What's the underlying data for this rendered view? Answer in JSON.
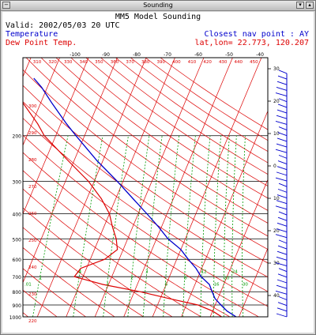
{
  "window": {
    "title": "Sounding"
  },
  "header": {
    "title": "MM5 Model Sounding",
    "valid": "Valid: 2002/05/03 20 UTC",
    "legend_temperature": "Temperature",
    "legend_dewpoint": "Dew Point Temp.",
    "nav_point": "Closest nav point : AY",
    "latlon": "lat,lon= 22.773, 120.207"
  },
  "colors": {
    "temperature": "#0000cc",
    "dewpoint": "#dd0000",
    "isotherm": "#dd0000",
    "dry_adiabat": "#dd0000",
    "mixing_ratio": "#009900",
    "grid": "#000000",
    "wind": "#0000cc"
  },
  "chart_data": {
    "type": "line",
    "title": "MM5 Model Sounding",
    "yscale": "log-pressure",
    "ylim": [
      100,
      1000
    ],
    "pressure_ticks": [
      200,
      300,
      400,
      500,
      600,
      700,
      800,
      900,
      1000
    ],
    "isotherm_top_labels": [
      -100,
      -90,
      -80,
      -70,
      -60,
      -50,
      -40
    ],
    "theta_labels": [
      310,
      320,
      330,
      340,
      350,
      360,
      370,
      380,
      390,
      400,
      410,
      420,
      430,
      440,
      450
    ],
    "theta_side_labels": [
      300,
      290,
      280,
      270,
      260,
      250,
      240,
      230,
      220
    ],
    "height_ticks": [
      30,
      20,
      10,
      0,
      10,
      20,
      30,
      40
    ],
    "mixing_ratio_labels": [
      ".01",
      ".1",
      ".4",
      "1",
      "2",
      "3",
      "5",
      "8",
      "12",
      "16",
      "20",
      "24",
      "30"
    ],
    "mixing_ratio_values": [
      0.01,
      0.1,
      0.4,
      1,
      2,
      3,
      5,
      8,
      12,
      16,
      20,
      24,
      30
    ],
    "series": [
      {
        "name": "Temperature",
        "color": "#0000cc",
        "pressure": [
          1000,
          950,
          900,
          850,
          800,
          750,
          700,
          650,
          600,
          550,
          500,
          450,
          400,
          350,
          300,
          250,
          200,
          180,
          150,
          130,
          120
        ],
        "temperature": [
          29,
          25,
          22,
          19,
          17,
          15,
          11,
          8,
          4,
          0,
          -6,
          -11,
          -17,
          -24,
          -32,
          -42,
          -53,
          -58,
          -66,
          -72,
          -76
        ]
      },
      {
        "name": "Dew Point Temp.",
        "color": "#dd0000",
        "pressure": [
          1000,
          950,
          900,
          850,
          800,
          750,
          700,
          650,
          600,
          550,
          500,
          450,
          400,
          350,
          300,
          250,
          200,
          180,
          150,
          130,
          120
        ],
        "dewpoint": [
          24,
          20,
          14,
          3,
          -8,
          -22,
          -33,
          -32,
          -25,
          -22,
          -24,
          -27,
          -30,
          -35,
          -42,
          -52,
          -64,
          -68,
          -76,
          -82,
          -86
        ]
      }
    ],
    "wind_barbs": {
      "count": 44,
      "pressure_top": 115,
      "pressure_bottom": 1000
    }
  }
}
